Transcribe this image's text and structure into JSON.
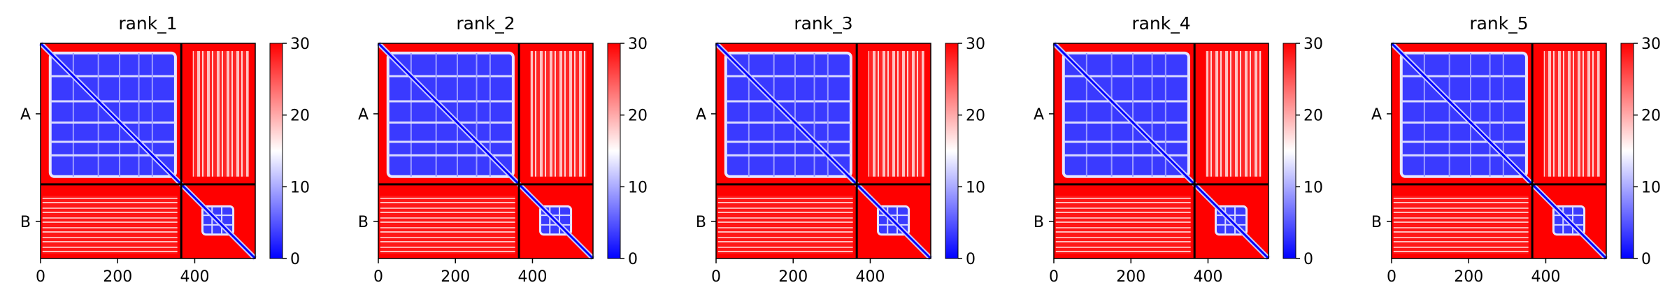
{
  "chart_data": [
    {
      "type": "heatmap",
      "title": "rank_1",
      "chain_labels": [
        "A",
        "B"
      ],
      "x_ticks": [
        0,
        200,
        400
      ],
      "xlim": [
        0,
        557
      ],
      "chain_boundary": 365,
      "colorbar": {
        "min": 0,
        "max": 30,
        "ticks": [
          0,
          10,
          20,
          30
        ],
        "colors": [
          "#0000ff",
          "#ffffff",
          "#ff0000"
        ]
      }
    },
    {
      "type": "heatmap",
      "title": "rank_2",
      "chain_labels": [
        "A",
        "B"
      ],
      "x_ticks": [
        0,
        200,
        400
      ],
      "xlim": [
        0,
        557
      ],
      "chain_boundary": 365,
      "colorbar": {
        "min": 0,
        "max": 30,
        "ticks": [
          0,
          10,
          20,
          30
        ],
        "colors": [
          "#0000ff",
          "#ffffff",
          "#ff0000"
        ]
      }
    },
    {
      "type": "heatmap",
      "title": "rank_3",
      "chain_labels": [
        "A",
        "B"
      ],
      "x_ticks": [
        0,
        200,
        400
      ],
      "xlim": [
        0,
        557
      ],
      "chain_boundary": 365,
      "colorbar": {
        "min": 0,
        "max": 30,
        "ticks": [
          0,
          10,
          20,
          30
        ],
        "colors": [
          "#0000ff",
          "#ffffff",
          "#ff0000"
        ]
      }
    },
    {
      "type": "heatmap",
      "title": "rank_4",
      "chain_labels": [
        "A",
        "B"
      ],
      "x_ticks": [
        0,
        200,
        400
      ],
      "xlim": [
        0,
        557
      ],
      "chain_boundary": 365,
      "colorbar": {
        "min": 0,
        "max": 30,
        "ticks": [
          0,
          10,
          20,
          30
        ],
        "colors": [
          "#0000ff",
          "#ffffff",
          "#ff0000"
        ]
      }
    },
    {
      "type": "heatmap",
      "title": "rank_5",
      "chain_labels": [
        "A",
        "B"
      ],
      "x_ticks": [
        0,
        200,
        400
      ],
      "xlim": [
        0,
        557
      ],
      "chain_boundary": 365,
      "colorbar": {
        "min": 0,
        "max": 30,
        "ticks": [
          0,
          10,
          20,
          30
        ],
        "colors": [
          "#0000ff",
          "#ffffff",
          "#ff0000"
        ]
      }
    }
  ]
}
